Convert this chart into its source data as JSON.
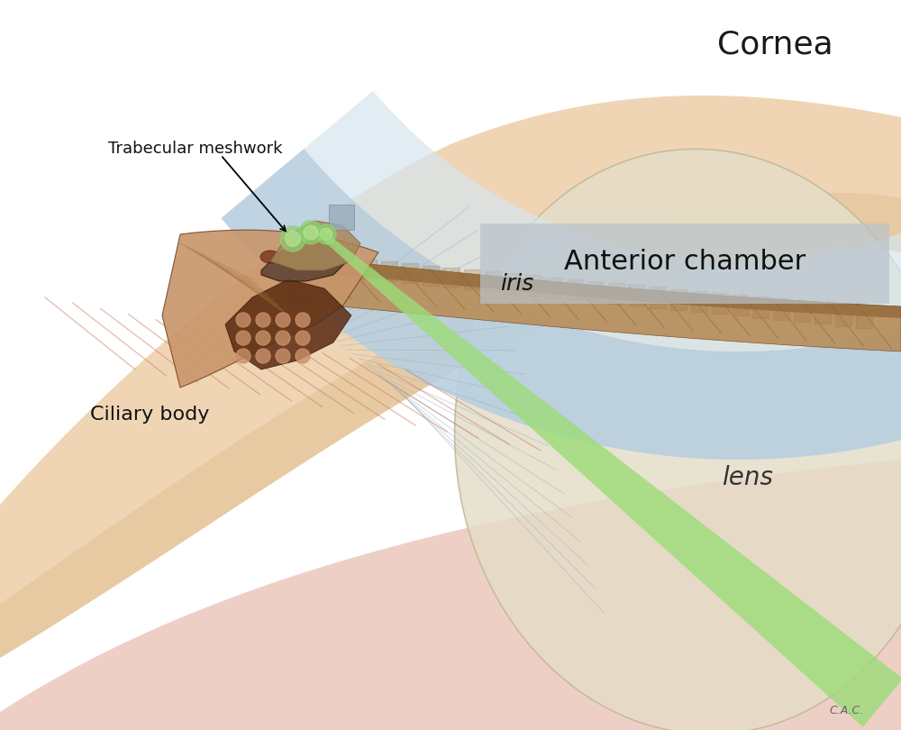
{
  "bg_color": "#ffffff",
  "cornea_outer_color": "#c5d8e8",
  "cornea_mid_color": "#b8cfe0",
  "cornea_inner_color": "#ccdce8",
  "sclera_color": "#f0d5b5",
  "sclera_inner_color": "#e8c8a0",
  "pink_muscle_color": "#dba898",
  "iris_top_color": "#c8a870",
  "iris_main_color": "#b89060",
  "iris_dark_color": "#7a5030",
  "ciliary_color": "#d4a87a",
  "ciliary_dark_color": "#8b5030",
  "lens_color": "#e5ddc8",
  "lens_edge_color": "#c8bfa8",
  "trabecular_green": "#8ecf70",
  "laser_green": "#9cdc78",
  "anterior_bg": "#b8c5d0",
  "label_cornea": "Cornea",
  "label_anterior": "Anterior chamber",
  "label_iris": "iris",
  "label_ciliary": "Ciliary body",
  "label_lens": "lens",
  "label_trabecular": "Trabecular meshwork",
  "label_signature": "C.A.C.",
  "fs_cornea": 26,
  "fs_anterior": 22,
  "fs_iris": 18,
  "fs_lens": 20,
  "fs_ciliary": 16,
  "fs_trabecular": 13
}
